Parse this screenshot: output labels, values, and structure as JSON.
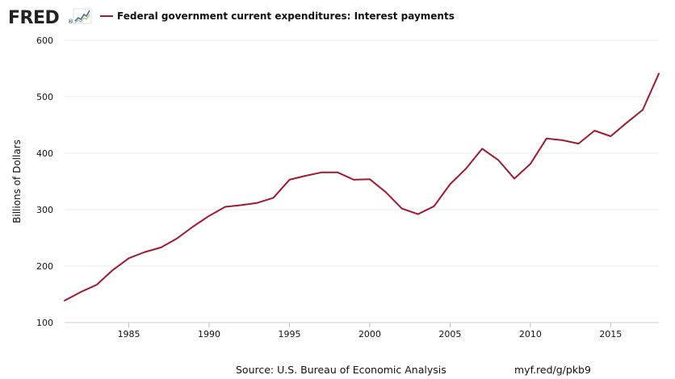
{
  "brand": {
    "logo_text": "FRED",
    "logo_registered": "®",
    "logo_icon": "chart-trend-icon"
  },
  "legend": {
    "label": "Federal government current expenditures: Interest payments",
    "color": "#a0192d"
  },
  "footer": {
    "source": "Source: U.S. Bureau of Economic Analysis",
    "short_url": "myf.red/g/pkb9"
  },
  "chart_data": {
    "type": "line",
    "title": "",
    "xlabel": "",
    "ylabel": "Billions of Dollars",
    "xlim": [
      1981,
      2018
    ],
    "ylim": [
      100,
      600
    ],
    "x_ticks": [
      1985,
      1990,
      1995,
      2000,
      2005,
      2010,
      2015
    ],
    "y_ticks": [
      100,
      200,
      300,
      400,
      500,
      600
    ],
    "grid": "horizontal",
    "legend_position": "top-left",
    "series": [
      {
        "name": "Federal government current expenditures: Interest payments",
        "color": "#a0192d",
        "x": [
          1981,
          1982,
          1983,
          1984,
          1985,
          1986,
          1987,
          1988,
          1989,
          1990,
          1991,
          1992,
          1993,
          1994,
          1995,
          1996,
          1997,
          1998,
          1999,
          2000,
          2001,
          2002,
          2003,
          2004,
          2005,
          2006,
          2007,
          2008,
          2009,
          2010,
          2011,
          2012,
          2013,
          2014,
          2015,
          2016,
          2017,
          2018
        ],
        "values": [
          139,
          154,
          167,
          193,
          214,
          225,
          233,
          249,
          270,
          289,
          305,
          308,
          312,
          321,
          353,
          360,
          366,
          366,
          353,
          354,
          331,
          302,
          292,
          306,
          345,
          373,
          408,
          388,
          355,
          381,
          426,
          423,
          417,
          440,
          430,
          454,
          477,
          541
        ]
      }
    ]
  }
}
